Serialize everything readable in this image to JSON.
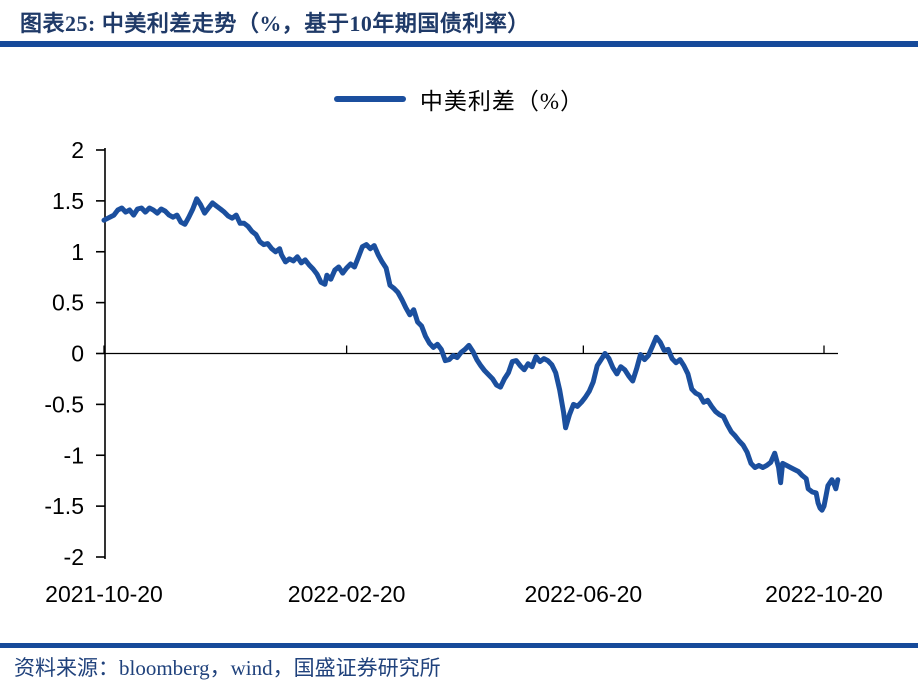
{
  "header": {
    "title": "图表25:  中美利差走势（%，基于10年期国债利率）"
  },
  "footer": {
    "source": "资料来源：bloomberg，wind，国盛证券研究所"
  },
  "colors": {
    "line_blue": "#1B4F9E",
    "rule_blue": "#164A9A",
    "title_navy": "#1F3A68",
    "source_navy": "#20427C",
    "axis_black": "#000000"
  },
  "chart_data": {
    "type": "line",
    "title": "中美利差走势（%，基于10年期国债利率）",
    "xlabel": "",
    "ylabel": "",
    "ylim": [
      -2,
      2
    ],
    "grid": false,
    "legend_position": "top-center",
    "x_range": [
      "2021-10-20",
      "2022-10-27"
    ],
    "x_ticks": [
      "2021-10-20",
      "2022-02-20",
      "2022-06-20",
      "2022-10-20"
    ],
    "y_ticks": [
      2,
      1.5,
      1,
      0.5,
      0,
      -0.5,
      -1,
      -1.5,
      -2
    ],
    "y_tick_labels": [
      "2",
      "1.5",
      "1",
      "0.5",
      "0",
      "-0.5",
      "-1",
      "-1.5",
      "-2"
    ],
    "series": [
      {
        "name": "中美利差（%）",
        "color": "#1B4F9E",
        "points": [
          [
            "2021-10-20",
            1.31
          ],
          [
            "2021-10-22",
            1.33
          ],
          [
            "2021-10-25",
            1.36
          ],
          [
            "2021-10-27",
            1.41
          ],
          [
            "2021-10-29",
            1.43
          ],
          [
            "2021-10-31",
            1.39
          ],
          [
            "2021-11-02",
            1.41
          ],
          [
            "2021-11-04",
            1.36
          ],
          [
            "2021-11-06",
            1.42
          ],
          [
            "2021-11-08",
            1.43
          ],
          [
            "2021-11-10",
            1.39
          ],
          [
            "2021-11-12",
            1.43
          ],
          [
            "2021-11-14",
            1.41
          ],
          [
            "2021-11-16",
            1.38
          ],
          [
            "2021-11-18",
            1.42
          ],
          [
            "2021-11-20",
            1.4
          ],
          [
            "2021-11-22",
            1.36
          ],
          [
            "2021-11-24",
            1.34
          ],
          [
            "2021-11-26",
            1.36
          ],
          [
            "2021-11-28",
            1.29
          ],
          [
            "2021-11-30",
            1.27
          ],
          [
            "2021-12-02",
            1.34
          ],
          [
            "2021-12-04",
            1.42
          ],
          [
            "2021-12-06",
            1.52
          ],
          [
            "2021-12-08",
            1.46
          ],
          [
            "2021-12-10",
            1.38
          ],
          [
            "2021-12-12",
            1.43
          ],
          [
            "2021-12-14",
            1.48
          ],
          [
            "2021-12-16",
            1.45
          ],
          [
            "2021-12-18",
            1.42
          ],
          [
            "2021-12-20",
            1.39
          ],
          [
            "2021-12-22",
            1.35
          ],
          [
            "2021-12-24",
            1.33
          ],
          [
            "2021-12-26",
            1.36
          ],
          [
            "2021-12-28",
            1.28
          ],
          [
            "2021-12-30",
            1.28
          ],
          [
            "2022-01-01",
            1.25
          ],
          [
            "2022-01-03",
            1.2
          ],
          [
            "2022-01-05",
            1.17
          ],
          [
            "2022-01-07",
            1.1
          ],
          [
            "2022-01-09",
            1.07
          ],
          [
            "2022-01-11",
            1.08
          ],
          [
            "2022-01-13",
            1.03
          ],
          [
            "2022-01-15",
            1.0
          ],
          [
            "2022-01-17",
            1.03
          ],
          [
            "2022-01-18",
            0.97
          ],
          [
            "2022-01-20",
            0.9
          ],
          [
            "2022-01-22",
            0.93
          ],
          [
            "2022-01-24",
            0.91
          ],
          [
            "2022-01-26",
            0.95
          ],
          [
            "2022-01-28",
            0.89
          ],
          [
            "2022-01-30",
            0.92
          ],
          [
            "2022-02-01",
            0.87
          ],
          [
            "2022-02-03",
            0.83
          ],
          [
            "2022-02-05",
            0.78
          ],
          [
            "2022-02-07",
            0.7
          ],
          [
            "2022-02-09",
            0.68
          ],
          [
            "2022-02-10",
            0.77
          ],
          [
            "2022-02-12",
            0.73
          ],
          [
            "2022-02-14",
            0.82
          ],
          [
            "2022-02-16",
            0.85
          ],
          [
            "2022-02-18",
            0.79
          ],
          [
            "2022-02-20",
            0.84
          ],
          [
            "2022-02-22",
            0.88
          ],
          [
            "2022-02-24",
            0.85
          ],
          [
            "2022-02-26",
            0.95
          ],
          [
            "2022-02-28",
            1.05
          ],
          [
            "2022-03-02",
            1.07
          ],
          [
            "2022-03-04",
            1.03
          ],
          [
            "2022-03-06",
            1.06
          ],
          [
            "2022-03-08",
            0.97
          ],
          [
            "2022-03-10",
            0.9
          ],
          [
            "2022-03-12",
            0.84
          ],
          [
            "2022-03-14",
            0.67
          ],
          [
            "2022-03-16",
            0.64
          ],
          [
            "2022-03-18",
            0.6
          ],
          [
            "2022-03-20",
            0.53
          ],
          [
            "2022-03-22",
            0.45
          ],
          [
            "2022-03-24",
            0.38
          ],
          [
            "2022-03-26",
            0.43
          ],
          [
            "2022-03-28",
            0.31
          ],
          [
            "2022-03-30",
            0.27
          ],
          [
            "2022-04-01",
            0.17
          ],
          [
            "2022-04-03",
            0.1
          ],
          [
            "2022-04-05",
            0.06
          ],
          [
            "2022-04-07",
            0.09
          ],
          [
            "2022-04-09",
            0.04
          ],
          [
            "2022-04-11",
            -0.07
          ],
          [
            "2022-04-13",
            -0.06
          ],
          [
            "2022-04-15",
            -0.02
          ],
          [
            "2022-04-17",
            -0.04
          ],
          [
            "2022-04-19",
            0.01
          ],
          [
            "2022-04-21",
            0.04
          ],
          [
            "2022-04-23",
            0.08
          ],
          [
            "2022-04-25",
            0.02
          ],
          [
            "2022-04-27",
            -0.06
          ],
          [
            "2022-04-29",
            -0.12
          ],
          [
            "2022-05-01",
            -0.17
          ],
          [
            "2022-05-03",
            -0.21
          ],
          [
            "2022-05-05",
            -0.25
          ],
          [
            "2022-05-07",
            -0.31
          ],
          [
            "2022-05-09",
            -0.33
          ],
          [
            "2022-05-11",
            -0.25
          ],
          [
            "2022-05-13",
            -0.19
          ],
          [
            "2022-05-15",
            -0.08
          ],
          [
            "2022-05-17",
            -0.07
          ],
          [
            "2022-05-19",
            -0.12
          ],
          [
            "2022-05-21",
            -0.16
          ],
          [
            "2022-05-23",
            -0.1
          ],
          [
            "2022-05-25",
            -0.13
          ],
          [
            "2022-05-27",
            -0.03
          ],
          [
            "2022-05-29",
            -0.08
          ],
          [
            "2022-05-31",
            -0.05
          ],
          [
            "2022-06-02",
            -0.07
          ],
          [
            "2022-06-04",
            -0.11
          ],
          [
            "2022-06-06",
            -0.19
          ],
          [
            "2022-06-08",
            -0.36
          ],
          [
            "2022-06-10",
            -0.58
          ],
          [
            "2022-06-11",
            -0.73
          ],
          [
            "2022-06-13",
            -0.6
          ],
          [
            "2022-06-15",
            -0.5
          ],
          [
            "2022-06-17",
            -0.52
          ],
          [
            "2022-06-19",
            -0.48
          ],
          [
            "2022-06-21",
            -0.43
          ],
          [
            "2022-06-23",
            -0.37
          ],
          [
            "2022-06-25",
            -0.28
          ],
          [
            "2022-06-27",
            -0.12
          ],
          [
            "2022-06-29",
            -0.06
          ],
          [
            "2022-07-01",
            0.0
          ],
          [
            "2022-07-03",
            -0.05
          ],
          [
            "2022-07-05",
            -0.14
          ],
          [
            "2022-07-07",
            -0.2
          ],
          [
            "2022-07-09",
            -0.13
          ],
          [
            "2022-07-11",
            -0.16
          ],
          [
            "2022-07-13",
            -0.22
          ],
          [
            "2022-07-15",
            -0.27
          ],
          [
            "2022-07-17",
            -0.15
          ],
          [
            "2022-07-19",
            -0.01
          ],
          [
            "2022-07-21",
            -0.06
          ],
          [
            "2022-07-23",
            -0.02
          ],
          [
            "2022-07-25",
            0.07
          ],
          [
            "2022-07-27",
            0.16
          ],
          [
            "2022-07-29",
            0.11
          ],
          [
            "2022-07-31",
            0.03
          ],
          [
            "2022-08-02",
            0.04
          ],
          [
            "2022-08-04",
            -0.05
          ],
          [
            "2022-08-06",
            -0.09
          ],
          [
            "2022-08-08",
            -0.06
          ],
          [
            "2022-08-10",
            -0.12
          ],
          [
            "2022-08-12",
            -0.2
          ],
          [
            "2022-08-14",
            -0.35
          ],
          [
            "2022-08-16",
            -0.39
          ],
          [
            "2022-08-18",
            -0.41
          ],
          [
            "2022-08-20",
            -0.48
          ],
          [
            "2022-08-22",
            -0.46
          ],
          [
            "2022-08-24",
            -0.52
          ],
          [
            "2022-08-26",
            -0.57
          ],
          [
            "2022-08-28",
            -0.6
          ],
          [
            "2022-08-30",
            -0.62
          ],
          [
            "2022-09-01",
            -0.7
          ],
          [
            "2022-09-03",
            -0.77
          ],
          [
            "2022-09-05",
            -0.81
          ],
          [
            "2022-09-07",
            -0.86
          ],
          [
            "2022-09-09",
            -0.9
          ],
          [
            "2022-09-11",
            -0.97
          ],
          [
            "2022-09-13",
            -1.08
          ],
          [
            "2022-09-15",
            -1.12
          ],
          [
            "2022-09-17",
            -1.1
          ],
          [
            "2022-09-19",
            -1.12
          ],
          [
            "2022-09-21",
            -1.1
          ],
          [
            "2022-09-23",
            -1.07
          ],
          [
            "2022-09-25",
            -0.98
          ],
          [
            "2022-09-27",
            -1.12
          ],
          [
            "2022-09-28",
            -1.27
          ],
          [
            "2022-09-29",
            -1.08
          ],
          [
            "2022-10-01",
            -1.1
          ],
          [
            "2022-10-03",
            -1.12
          ],
          [
            "2022-10-05",
            -1.14
          ],
          [
            "2022-10-07",
            -1.16
          ],
          [
            "2022-10-09",
            -1.2
          ],
          [
            "2022-10-11",
            -1.23
          ],
          [
            "2022-10-12",
            -1.33
          ],
          [
            "2022-10-14",
            -1.36
          ],
          [
            "2022-10-16",
            -1.37
          ],
          [
            "2022-10-17",
            -1.47
          ],
          [
            "2022-10-18",
            -1.52
          ],
          [
            "2022-10-19",
            -1.54
          ],
          [
            "2022-10-20",
            -1.5
          ],
          [
            "2022-10-21",
            -1.4
          ],
          [
            "2022-10-22",
            -1.3
          ],
          [
            "2022-10-24",
            -1.24
          ],
          [
            "2022-10-25",
            -1.28
          ],
          [
            "2022-10-26",
            -1.33
          ],
          [
            "2022-10-27",
            -1.24
          ]
        ]
      }
    ]
  }
}
